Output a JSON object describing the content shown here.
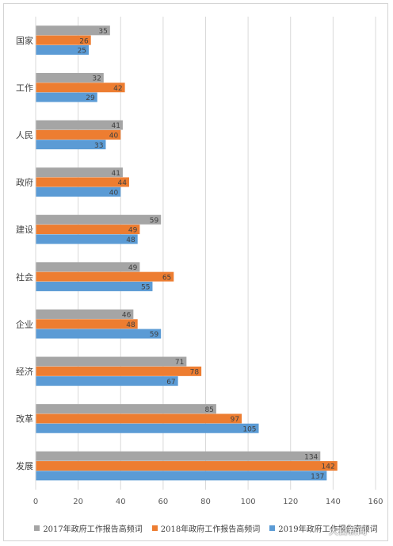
{
  "chart_data": {
    "type": "bar",
    "orientation": "horizontal",
    "categories": [
      "国家",
      "工作",
      "人民",
      "政府",
      "建设",
      "社会",
      "企业",
      "经济",
      "改革",
      "发展"
    ],
    "series": [
      {
        "name": "2017年政府工作报告高频词",
        "color": "#a5a5a5",
        "values": [
          35,
          32,
          41,
          41,
          59,
          49,
          46,
          71,
          85,
          134
        ]
      },
      {
        "name": "2018年政府工作报告高频词",
        "color": "#ed7d31",
        "values": [
          26,
          42,
          40,
          44,
          49,
          65,
          48,
          78,
          97,
          142
        ]
      },
      {
        "name": "2019年政府工作报告高频词",
        "color": "#5b9bd5",
        "values": [
          25,
          29,
          33,
          40,
          48,
          55,
          59,
          67,
          105,
          137
        ]
      }
    ],
    "xlim": [
      0,
      160
    ],
    "xticks": [
      0,
      20,
      40,
      60,
      80,
      100,
      120,
      140,
      160
    ],
    "grid": true,
    "legend_position": "bottom"
  },
  "watermark": "大白新闻"
}
